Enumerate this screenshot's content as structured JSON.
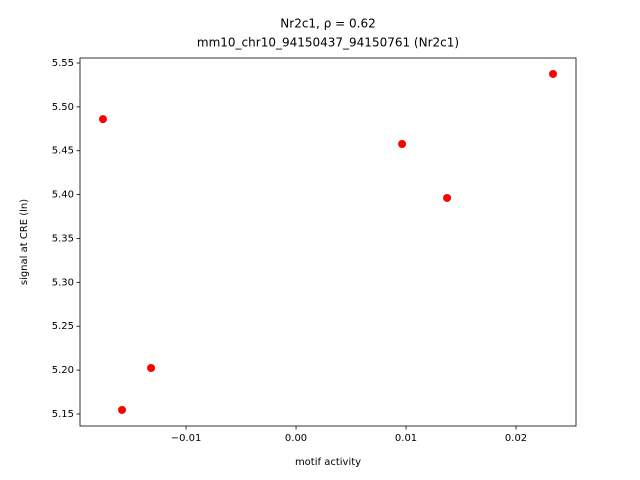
{
  "chart_data": {
    "type": "scatter",
    "title": "Nr2c1, ρ = 0.62",
    "subtitle": "mm10_chr10_94150437_94150761 (Nr2c1)",
    "x_label": "motif activity",
    "y_label": "signal at CRE (ln)",
    "color": "#ff0000",
    "x": [
      -0.01755,
      -0.01582,
      -0.01318,
      0.00964,
      0.01373,
      0.02336
    ],
    "y": [
      5.486,
      5.1546,
      5.2024,
      5.4577,
      5.3962,
      5.5375
    ],
    "xlim": [
      -0.01964,
      0.02545
    ],
    "ylim": [
      5.1363,
      5.5557
    ],
    "xticks": [
      {
        "value": -0.01,
        "label": "−0.01"
      },
      {
        "value": 0,
        "label": "0.00"
      },
      0.01,
      0.02
    ],
    "yticks": [
      5.15,
      {
        "value": 5.2,
        "label": "5.20"
      },
      5.25,
      {
        "value": 5.3,
        "label": "5.30"
      },
      5.35,
      {
        "value": 5.4,
        "label": "5.40"
      },
      5.45,
      {
        "value": 5.5,
        "label": "5.50"
      },
      5.55
    ]
  }
}
